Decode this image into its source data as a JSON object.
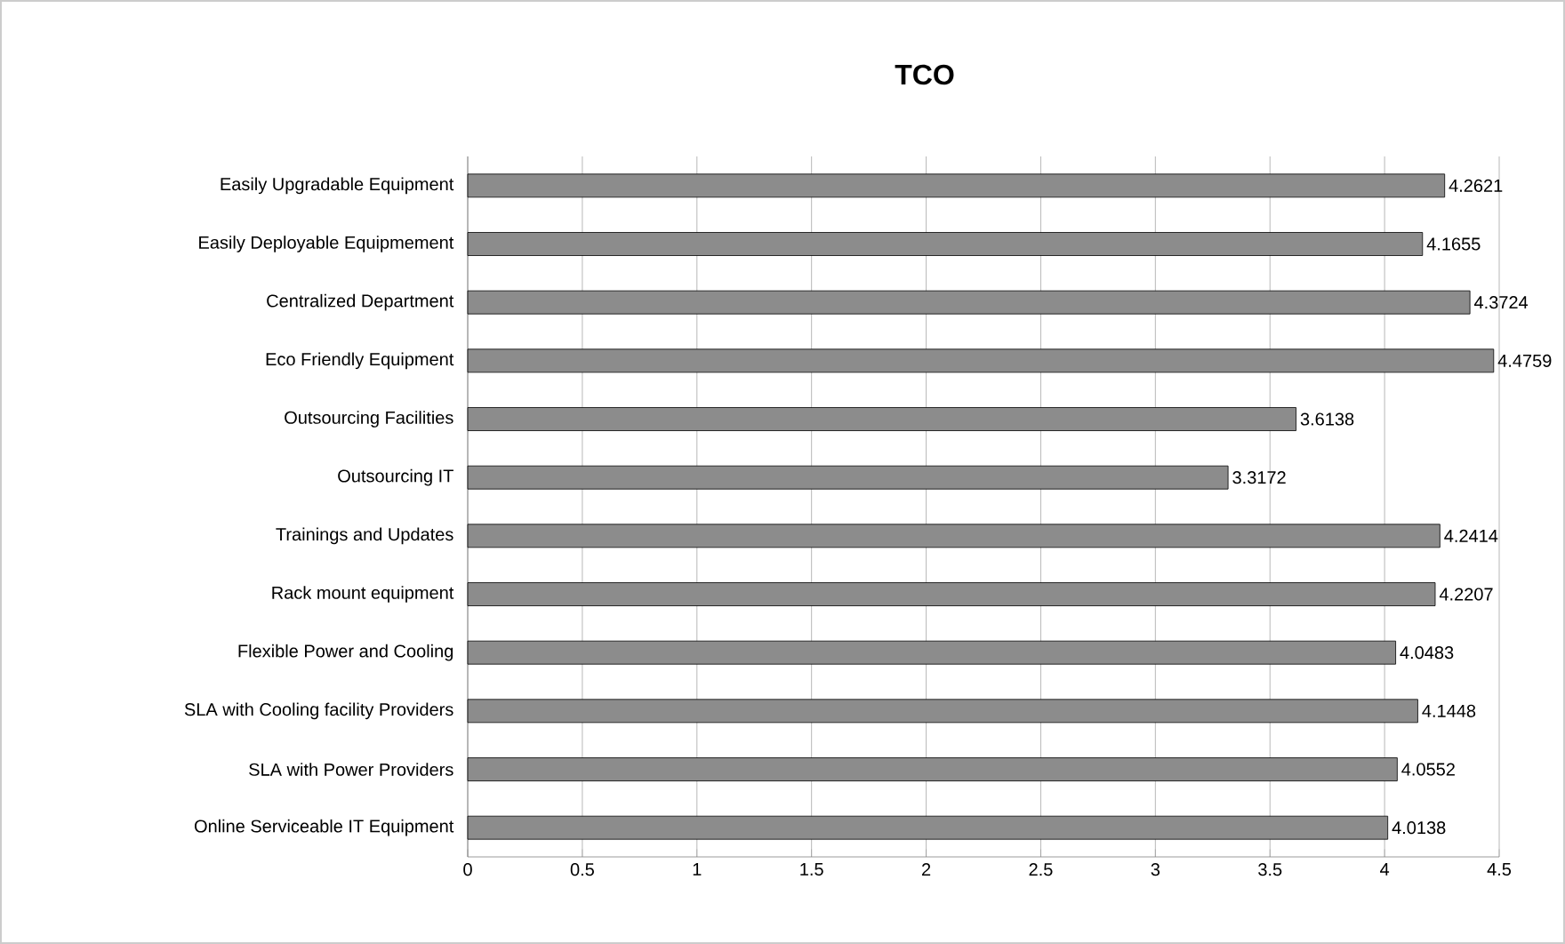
{
  "chart_data": {
    "type": "bar",
    "orientation": "horizontal",
    "title": "TCO",
    "categories": [
      "Easily Upgradable Equipment",
      "Easily Deployable Equipmement",
      "Centralized Department",
      "Eco Friendly Equipment",
      "Outsourcing Facilities",
      "Outsourcing IT",
      "Trainings and Updates",
      "Rack mount equipment",
      "Flexible Power and Cooling",
      "SLA with Cooling facility Providers",
      "SLA with Power Providers",
      "Online Serviceable IT Equipment"
    ],
    "values": [
      4.2621,
      4.1655,
      4.3724,
      4.4759,
      3.6138,
      3.3172,
      4.2414,
      4.2207,
      4.0483,
      4.1448,
      4.0552,
      4.0138
    ],
    "color": "#8c8c8c",
    "xlim": [
      0,
      4.5
    ],
    "xticks": [
      0,
      0.5,
      1,
      1.5,
      2,
      2.5,
      3,
      3.5,
      4,
      4.5
    ],
    "grid": "x",
    "data_labels": true
  }
}
